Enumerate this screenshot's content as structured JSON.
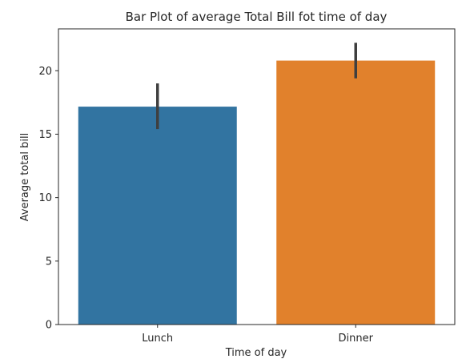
{
  "chart_data": {
    "type": "bar",
    "title": "Bar Plot of average Total Bill fot time of day",
    "xlabel": "Time of day",
    "ylabel": "Average total bill",
    "categories": [
      "Lunch",
      "Dinner"
    ],
    "values": [
      17.17,
      20.8
    ],
    "error_low": [
      15.4,
      19.4
    ],
    "error_high": [
      19.0,
      22.2
    ],
    "colors": [
      "#3274a1",
      "#e1812c"
    ],
    "error_color": "#3f3f3f",
    "ylim": [
      0,
      23.3
    ],
    "yticks": [
      0,
      5,
      10,
      15,
      20
    ],
    "grid": false
  }
}
